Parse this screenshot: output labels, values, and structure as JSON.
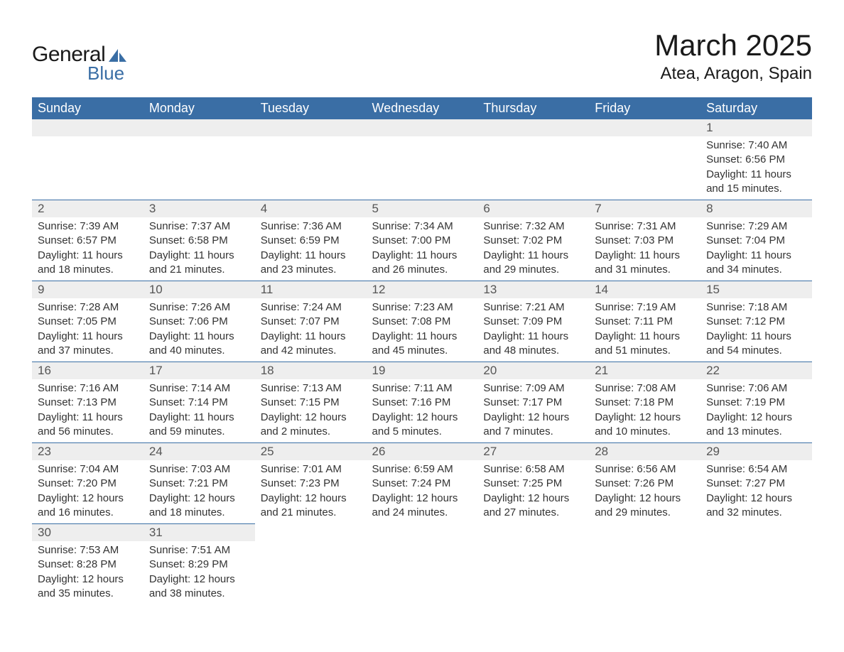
{
  "logo": {
    "general": "General",
    "blue": "Blue",
    "icon_color": "#3a6ea5"
  },
  "title": "March 2025",
  "location": "Atea, Aragon, Spain",
  "header_bg": "#3a6ea5",
  "header_fg": "#ffffff",
  "daynum_bg": "#eeeeee",
  "border_color": "#3a6ea5",
  "weekdays": [
    "Sunday",
    "Monday",
    "Tuesday",
    "Wednesday",
    "Thursday",
    "Friday",
    "Saturday"
  ],
  "weeks": [
    [
      {
        "blank": true
      },
      {
        "blank": true
      },
      {
        "blank": true
      },
      {
        "blank": true
      },
      {
        "blank": true
      },
      {
        "blank": true
      },
      {
        "day": "1",
        "sunrise": "Sunrise: 7:40 AM",
        "sunset": "Sunset: 6:56 PM",
        "daylight": "Daylight: 11 hours and 15 minutes."
      }
    ],
    [
      {
        "day": "2",
        "sunrise": "Sunrise: 7:39 AM",
        "sunset": "Sunset: 6:57 PM",
        "daylight": "Daylight: 11 hours and 18 minutes."
      },
      {
        "day": "3",
        "sunrise": "Sunrise: 7:37 AM",
        "sunset": "Sunset: 6:58 PM",
        "daylight": "Daylight: 11 hours and 21 minutes."
      },
      {
        "day": "4",
        "sunrise": "Sunrise: 7:36 AM",
        "sunset": "Sunset: 6:59 PM",
        "daylight": "Daylight: 11 hours and 23 minutes."
      },
      {
        "day": "5",
        "sunrise": "Sunrise: 7:34 AM",
        "sunset": "Sunset: 7:00 PM",
        "daylight": "Daylight: 11 hours and 26 minutes."
      },
      {
        "day": "6",
        "sunrise": "Sunrise: 7:32 AM",
        "sunset": "Sunset: 7:02 PM",
        "daylight": "Daylight: 11 hours and 29 minutes."
      },
      {
        "day": "7",
        "sunrise": "Sunrise: 7:31 AM",
        "sunset": "Sunset: 7:03 PM",
        "daylight": "Daylight: 11 hours and 31 minutes."
      },
      {
        "day": "8",
        "sunrise": "Sunrise: 7:29 AM",
        "sunset": "Sunset: 7:04 PM",
        "daylight": "Daylight: 11 hours and 34 minutes."
      }
    ],
    [
      {
        "day": "9",
        "sunrise": "Sunrise: 7:28 AM",
        "sunset": "Sunset: 7:05 PM",
        "daylight": "Daylight: 11 hours and 37 minutes."
      },
      {
        "day": "10",
        "sunrise": "Sunrise: 7:26 AM",
        "sunset": "Sunset: 7:06 PM",
        "daylight": "Daylight: 11 hours and 40 minutes."
      },
      {
        "day": "11",
        "sunrise": "Sunrise: 7:24 AM",
        "sunset": "Sunset: 7:07 PM",
        "daylight": "Daylight: 11 hours and 42 minutes."
      },
      {
        "day": "12",
        "sunrise": "Sunrise: 7:23 AM",
        "sunset": "Sunset: 7:08 PM",
        "daylight": "Daylight: 11 hours and 45 minutes."
      },
      {
        "day": "13",
        "sunrise": "Sunrise: 7:21 AM",
        "sunset": "Sunset: 7:09 PM",
        "daylight": "Daylight: 11 hours and 48 minutes."
      },
      {
        "day": "14",
        "sunrise": "Sunrise: 7:19 AM",
        "sunset": "Sunset: 7:11 PM",
        "daylight": "Daylight: 11 hours and 51 minutes."
      },
      {
        "day": "15",
        "sunrise": "Sunrise: 7:18 AM",
        "sunset": "Sunset: 7:12 PM",
        "daylight": "Daylight: 11 hours and 54 minutes."
      }
    ],
    [
      {
        "day": "16",
        "sunrise": "Sunrise: 7:16 AM",
        "sunset": "Sunset: 7:13 PM",
        "daylight": "Daylight: 11 hours and 56 minutes."
      },
      {
        "day": "17",
        "sunrise": "Sunrise: 7:14 AM",
        "sunset": "Sunset: 7:14 PM",
        "daylight": "Daylight: 11 hours and 59 minutes."
      },
      {
        "day": "18",
        "sunrise": "Sunrise: 7:13 AM",
        "sunset": "Sunset: 7:15 PM",
        "daylight": "Daylight: 12 hours and 2 minutes."
      },
      {
        "day": "19",
        "sunrise": "Sunrise: 7:11 AM",
        "sunset": "Sunset: 7:16 PM",
        "daylight": "Daylight: 12 hours and 5 minutes."
      },
      {
        "day": "20",
        "sunrise": "Sunrise: 7:09 AM",
        "sunset": "Sunset: 7:17 PM",
        "daylight": "Daylight: 12 hours and 7 minutes."
      },
      {
        "day": "21",
        "sunrise": "Sunrise: 7:08 AM",
        "sunset": "Sunset: 7:18 PM",
        "daylight": "Daylight: 12 hours and 10 minutes."
      },
      {
        "day": "22",
        "sunrise": "Sunrise: 7:06 AM",
        "sunset": "Sunset: 7:19 PM",
        "daylight": "Daylight: 12 hours and 13 minutes."
      }
    ],
    [
      {
        "day": "23",
        "sunrise": "Sunrise: 7:04 AM",
        "sunset": "Sunset: 7:20 PM",
        "daylight": "Daylight: 12 hours and 16 minutes."
      },
      {
        "day": "24",
        "sunrise": "Sunrise: 7:03 AM",
        "sunset": "Sunset: 7:21 PM",
        "daylight": "Daylight: 12 hours and 18 minutes."
      },
      {
        "day": "25",
        "sunrise": "Sunrise: 7:01 AM",
        "sunset": "Sunset: 7:23 PM",
        "daylight": "Daylight: 12 hours and 21 minutes."
      },
      {
        "day": "26",
        "sunrise": "Sunrise: 6:59 AM",
        "sunset": "Sunset: 7:24 PM",
        "daylight": "Daylight: 12 hours and 24 minutes."
      },
      {
        "day": "27",
        "sunrise": "Sunrise: 6:58 AM",
        "sunset": "Sunset: 7:25 PM",
        "daylight": "Daylight: 12 hours and 27 minutes."
      },
      {
        "day": "28",
        "sunrise": "Sunrise: 6:56 AM",
        "sunset": "Sunset: 7:26 PM",
        "daylight": "Daylight: 12 hours and 29 minutes."
      },
      {
        "day": "29",
        "sunrise": "Sunrise: 6:54 AM",
        "sunset": "Sunset: 7:27 PM",
        "daylight": "Daylight: 12 hours and 32 minutes."
      }
    ],
    [
      {
        "day": "30",
        "sunrise": "Sunrise: 7:53 AM",
        "sunset": "Sunset: 8:28 PM",
        "daylight": "Daylight: 12 hours and 35 minutes."
      },
      {
        "day": "31",
        "sunrise": "Sunrise: 7:51 AM",
        "sunset": "Sunset: 8:29 PM",
        "daylight": "Daylight: 12 hours and 38 minutes."
      },
      {
        "blank": true,
        "noBar": true
      },
      {
        "blank": true,
        "noBar": true
      },
      {
        "blank": true,
        "noBar": true
      },
      {
        "blank": true,
        "noBar": true
      },
      {
        "blank": true,
        "noBar": true
      }
    ]
  ]
}
